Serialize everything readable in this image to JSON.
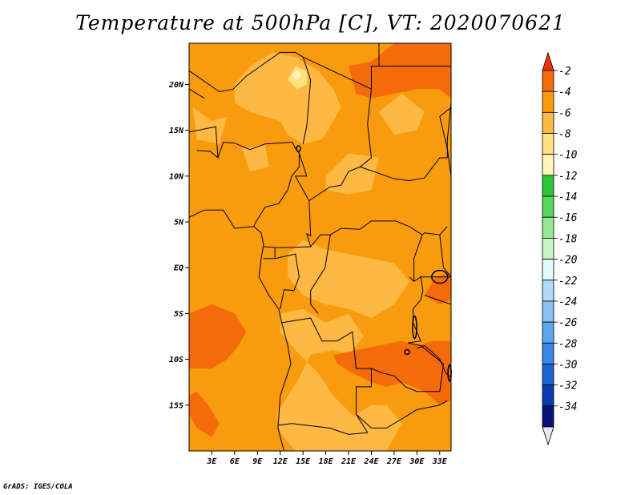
{
  "title": "Temperature at 500hPa [C], VT: 2020070621",
  "credit": "GrADS: IGES/COLA",
  "map": {
    "lon_range": [
      0,
      34.5
    ],
    "lat_range": [
      -20,
      24.5
    ],
    "lat_ticks": [
      {
        "value": 20,
        "label": "20N"
      },
      {
        "value": 15,
        "label": "15N"
      },
      {
        "value": 10,
        "label": "10N"
      },
      {
        "value": 5,
        "label": "5N"
      },
      {
        "value": 0,
        "label": "EQ"
      },
      {
        "value": -5,
        "label": "5S"
      },
      {
        "value": -10,
        "label": "10S"
      },
      {
        "value": -15,
        "label": "15S"
      }
    ],
    "lon_ticks": [
      {
        "value": 3,
        "label": "3E"
      },
      {
        "value": 6,
        "label": "6E"
      },
      {
        "value": 9,
        "label": "9E"
      },
      {
        "value": 12,
        "label": "12E"
      },
      {
        "value": 15,
        "label": "15E"
      },
      {
        "value": 18,
        "label": "18E"
      },
      {
        "value": 21,
        "label": "21E"
      },
      {
        "value": 24,
        "label": "24E"
      },
      {
        "value": 27,
        "label": "27E"
      },
      {
        "value": 30,
        "label": "30E"
      },
      {
        "value": 33,
        "label": "33E"
      }
    ],
    "field_colors": {
      "minus4_to_minus2": "#f56a0a",
      "minus6_to_minus4": "#f99b0e",
      "minus8_to_minus6": "#fdb943",
      "minus10_to_minus8": "#ffe27e",
      "minus12_to_minus10": "#fff5b6"
    }
  },
  "colorbar": {
    "levels": [
      "-2",
      "-4",
      "-6",
      "-8",
      "-10",
      "-12",
      "-14",
      "-16",
      "-18",
      "-20",
      "-22",
      "-24",
      "-26",
      "-28",
      "-30",
      "-32",
      "-34"
    ],
    "colors": [
      "#f0320a",
      "#f56a0a",
      "#f99b0e",
      "#fdb943",
      "#ffe27e",
      "#fff5b6",
      "#2ec43a",
      "#5ad55d",
      "#94e896",
      "#c6f5c4",
      "#e4fbfb",
      "#afd9f5",
      "#85c2f2",
      "#5aa7ee",
      "#3888e6",
      "#1c63d2",
      "#0a3ab0",
      "#06127a",
      "#e6e6fa"
    ]
  }
}
